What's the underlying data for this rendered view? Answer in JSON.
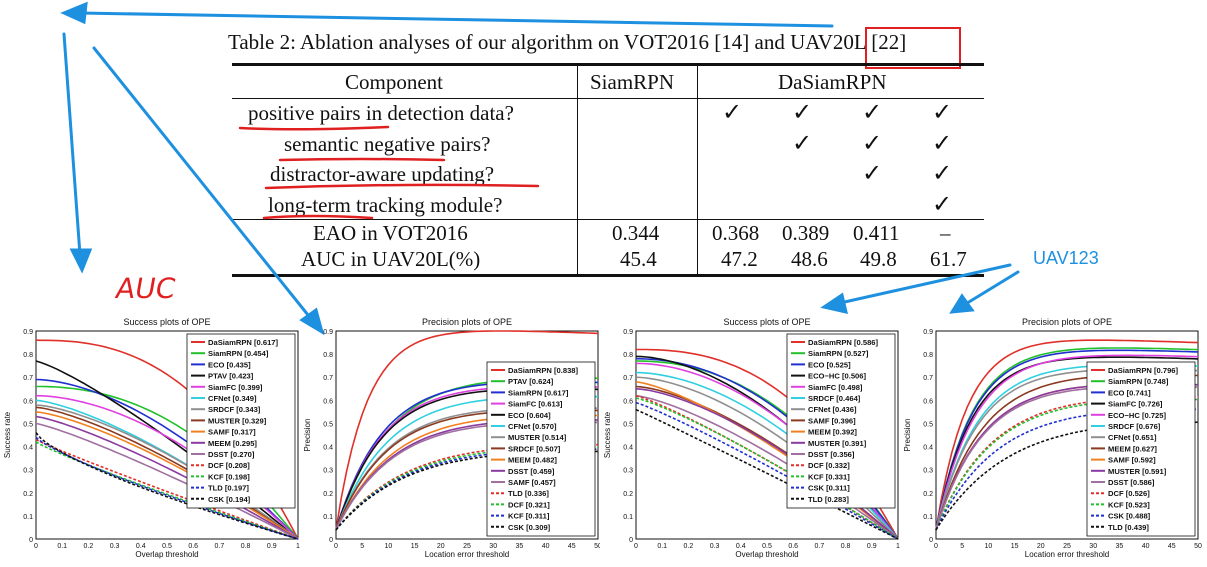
{
  "caption": {
    "prefix": "Table 2: Ablation analyses of our algorithm on VOT2016 [14] and ",
    "highlight": "UAV20L",
    "suffix": " [22]"
  },
  "table": {
    "headers": [
      "Component",
      "SiamRPN",
      "DaSiamRPN"
    ],
    "rows": [
      {
        "label": "positive pairs in detection data?",
        "checks": [
          true,
          true,
          true,
          true
        ]
      },
      {
        "label": "semantic negative pairs?",
        "checks": [
          false,
          true,
          true,
          true
        ]
      },
      {
        "label": "distractor-aware updating?",
        "checks": [
          false,
          false,
          true,
          true
        ]
      },
      {
        "label": "long-term tracking module?",
        "checks": [
          false,
          false,
          false,
          true
        ]
      }
    ],
    "metrics": [
      {
        "label": "EAO in VOT2016",
        "siamrpn": "0.344",
        "values": [
          "0.368",
          "0.389",
          "0.411",
          "–"
        ]
      },
      {
        "label": "AUC in UAV20L(%)",
        "siamrpn": "45.4",
        "values": [
          "47.2",
          "48.6",
          "49.8",
          "61.7"
        ]
      }
    ],
    "check_glyph": "✓"
  },
  "annotations": {
    "uav123": "UAV123",
    "auc": "AUC"
  },
  "colors": {
    "annotation_red": "#e02020",
    "annotation_blue": "#1e90e0"
  },
  "chart_data": [
    {
      "type": "line",
      "title": "Success plots of OPE",
      "xlabel": "Overlap threshold",
      "ylabel": "Success rate",
      "xlim": [
        0,
        1
      ],
      "ylim": [
        0,
        0.9
      ],
      "xticks": [
        "0",
        "0.1",
        "0.2",
        "0.3",
        "0.4",
        "0.5",
        "0.6",
        "0.7",
        "0.8",
        "0.9",
        "1"
      ],
      "yticks": [
        "0",
        "0.1",
        "0.2",
        "0.3",
        "0.4",
        "0.5",
        "0.6",
        "0.7",
        "0.8",
        "0.9"
      ],
      "legend_position": "top-right",
      "series": [
        {
          "name": "DaSiamRPN [0.617]",
          "color": "#e0302a",
          "dash": "solid",
          "start": 0.86,
          "shape": "success"
        },
        {
          "name": "SiamRPN [0.454]",
          "color": "#22c02a",
          "dash": "solid",
          "start": 0.66,
          "shape": "success"
        },
        {
          "name": "ECO [0.435]",
          "color": "#2030d0",
          "dash": "solid",
          "start": 0.69,
          "shape": "success"
        },
        {
          "name": "PTAV [0.423]",
          "color": "#111111",
          "dash": "solid",
          "start": 0.77,
          "shape": "success"
        },
        {
          "name": "SiamFC [0.399]",
          "color": "#e040e0",
          "dash": "solid",
          "start": 0.62,
          "shape": "success"
        },
        {
          "name": "CFNet [0.349]",
          "color": "#30d0e0",
          "dash": "solid",
          "start": 0.6,
          "shape": "success"
        },
        {
          "name": "SRDCF [0.343]",
          "color": "#909090",
          "dash": "solid",
          "start": 0.58,
          "shape": "success"
        },
        {
          "name": "MUSTER [0.329]",
          "color": "#8a3a20",
          "dash": "solid",
          "start": 0.57,
          "shape": "success"
        },
        {
          "name": "SAMF [0.317]",
          "color": "#f08020",
          "dash": "solid",
          "start": 0.55,
          "shape": "success"
        },
        {
          "name": "MEEM [0.295]",
          "color": "#8a3aa0",
          "dash": "solid",
          "start": 0.53,
          "shape": "success"
        },
        {
          "name": "DSST [0.270]",
          "color": "#a070a0",
          "dash": "solid",
          "start": 0.5,
          "shape": "success"
        },
        {
          "name": "DCF [0.208]",
          "color": "#e0302a",
          "dash": "dash",
          "start": 0.43,
          "shape": "success"
        },
        {
          "name": "KCF [0.198]",
          "color": "#22c02a",
          "dash": "dash",
          "start": 0.42,
          "shape": "success"
        },
        {
          "name": "TLD [0.197]",
          "color": "#2030d0",
          "dash": "dash",
          "start": 0.44,
          "shape": "success"
        },
        {
          "name": "CSK [0.194]",
          "color": "#111111",
          "dash": "dash",
          "start": 0.46,
          "shape": "success"
        }
      ]
    },
    {
      "type": "line",
      "title": "Precision plots of OPE",
      "xlabel": "Location error threshold",
      "ylabel": "Precision",
      "xlim": [
        0,
        50
      ],
      "ylim": [
        0,
        0.9
      ],
      "xticks": [
        "0",
        "5",
        "10",
        "15",
        "20",
        "25",
        "30",
        "35",
        "40",
        "45",
        "50"
      ],
      "yticks": [
        "0",
        "0.1",
        "0.2",
        "0.3",
        "0.4",
        "0.5",
        "0.6",
        "0.7",
        "0.8",
        "0.9"
      ],
      "legend_position": "bottom-right",
      "series": [
        {
          "name": "DaSiamRPN [0.838]",
          "color": "#e0302a",
          "dash": "solid",
          "end": 0.89,
          "k": 6
        },
        {
          "name": "PTAV [0.624]",
          "color": "#22c02a",
          "dash": "solid",
          "end": 0.7,
          "k": 10
        },
        {
          "name": "SiamRPN [0.617]",
          "color": "#2030d0",
          "dash": "solid",
          "end": 0.68,
          "k": 9
        },
        {
          "name": "SiamFC [0.613]",
          "color": "#e040e0",
          "dash": "solid",
          "end": 0.66,
          "k": 9
        },
        {
          "name": "ECO [0.604]",
          "color": "#111111",
          "dash": "solid",
          "end": 0.65,
          "k": 9
        },
        {
          "name": "CFNet [0.570]",
          "color": "#30d0e0",
          "dash": "solid",
          "end": 0.62,
          "k": 10
        },
        {
          "name": "MUSTER [0.514]",
          "color": "#909090",
          "dash": "solid",
          "end": 0.57,
          "k": 10
        },
        {
          "name": "SRDCF [0.507]",
          "color": "#8a3a20",
          "dash": "solid",
          "end": 0.56,
          "k": 10
        },
        {
          "name": "MEEM [0.482]",
          "color": "#f08020",
          "dash": "solid",
          "end": 0.54,
          "k": 11
        },
        {
          "name": "DSST [0.459]",
          "color": "#8a3aa0",
          "dash": "solid",
          "end": 0.52,
          "k": 11
        },
        {
          "name": "SAMF [0.457]",
          "color": "#a070a0",
          "dash": "solid",
          "end": 0.51,
          "k": 11
        },
        {
          "name": "TLD [0.336]",
          "color": "#e0302a",
          "dash": "dash",
          "end": 0.42,
          "k": 14
        },
        {
          "name": "DCF [0.321]",
          "color": "#22c02a",
          "dash": "dash",
          "end": 0.41,
          "k": 14
        },
        {
          "name": "KCF [0.311]",
          "color": "#2030d0",
          "dash": "dash",
          "end": 0.4,
          "k": 14
        },
        {
          "name": "CSK [0.309]",
          "color": "#111111",
          "dash": "dash",
          "end": 0.39,
          "k": 14
        }
      ]
    },
    {
      "type": "line",
      "title": "Success plots of OPE",
      "xlabel": "Overlap threshold",
      "ylabel": "Success rate",
      "xlim": [
        0,
        1
      ],
      "ylim": [
        0,
        0.9
      ],
      "xticks": [
        "0",
        "0.1",
        "0.2",
        "0.3",
        "0.4",
        "0.5",
        "0.6",
        "0.7",
        "0.8",
        "0.9",
        "1"
      ],
      "yticks": [
        "0",
        "0.1",
        "0.2",
        "0.3",
        "0.4",
        "0.5",
        "0.6",
        "0.7",
        "0.8",
        "0.9"
      ],
      "legend_position": "top-right",
      "series": [
        {
          "name": "DaSiamRPN [0.586]",
          "color": "#e0302a",
          "dash": "solid",
          "start": 0.82,
          "shape": "success"
        },
        {
          "name": "SiamRPN [0.527]",
          "color": "#22c02a",
          "dash": "solid",
          "start": 0.77,
          "shape": "success"
        },
        {
          "name": "ECO [0.525]",
          "color": "#2030d0",
          "dash": "solid",
          "start": 0.78,
          "shape": "success"
        },
        {
          "name": "ECO−HC [0.506]",
          "color": "#111111",
          "dash": "solid",
          "start": 0.79,
          "shape": "success"
        },
        {
          "name": "SiamFC [0.498]",
          "color": "#e040e0",
          "dash": "solid",
          "start": 0.76,
          "shape": "success"
        },
        {
          "name": "SRDCF [0.464]",
          "color": "#30d0e0",
          "dash": "solid",
          "start": 0.72,
          "shape": "success"
        },
        {
          "name": "CFNet [0.436]",
          "color": "#909090",
          "dash": "solid",
          "start": 0.7,
          "shape": "success"
        },
        {
          "name": "SAMF [0.396]",
          "color": "#8a3a20",
          "dash": "solid",
          "start": 0.66,
          "shape": "success"
        },
        {
          "name": "MEEM [0.392]",
          "color": "#f08020",
          "dash": "solid",
          "start": 0.68,
          "shape": "success"
        },
        {
          "name": "MUSTER [0.391]",
          "color": "#8a3aa0",
          "dash": "solid",
          "start": 0.65,
          "shape": "success"
        },
        {
          "name": "DSST [0.356]",
          "color": "#a070a0",
          "dash": "solid",
          "start": 0.62,
          "shape": "success"
        },
        {
          "name": "DCF [0.332]",
          "color": "#e0302a",
          "dash": "dash",
          "start": 0.62,
          "shape": "success"
        },
        {
          "name": "KCF [0.331]",
          "color": "#22c02a",
          "dash": "dash",
          "start": 0.61,
          "shape": "success"
        },
        {
          "name": "CSK [0.311]",
          "color": "#2030d0",
          "dash": "dash",
          "start": 0.59,
          "shape": "success"
        },
        {
          "name": "TLD [0.283]",
          "color": "#111111",
          "dash": "dash",
          "start": 0.56,
          "shape": "success"
        }
      ]
    },
    {
      "type": "line",
      "title": "Precision plots of OPE",
      "xlabel": "Location error threshold",
      "ylabel": "Precision",
      "xlim": [
        0,
        50
      ],
      "ylim": [
        0,
        0.9
      ],
      "xticks": [
        "0",
        "5",
        "10",
        "15",
        "20",
        "25",
        "30",
        "35",
        "40",
        "45",
        "50"
      ],
      "yticks": [
        "0",
        "0.1",
        "0.2",
        "0.3",
        "0.4",
        "0.5",
        "0.6",
        "0.7",
        "0.8",
        "0.9"
      ],
      "legend_position": "bottom-right",
      "series": [
        {
          "name": "DaSiamRPN [0.796]",
          "color": "#e0302a",
          "dash": "solid",
          "end": 0.85,
          "k": 6
        },
        {
          "name": "SiamRPN [0.748]",
          "color": "#22c02a",
          "dash": "solid",
          "end": 0.82,
          "k": 7
        },
        {
          "name": "ECO [0.741]",
          "color": "#2030d0",
          "dash": "solid",
          "end": 0.81,
          "k": 7
        },
        {
          "name": "SiamFC [0.726]",
          "color": "#111111",
          "dash": "solid",
          "end": 0.78,
          "k": 7
        },
        {
          "name": "ECO−HC [0.725]",
          "color": "#e040e0",
          "dash": "solid",
          "end": 0.79,
          "k": 7.5
        },
        {
          "name": "SRDCF [0.676]",
          "color": "#30d0e0",
          "dash": "solid",
          "end": 0.75,
          "k": 8
        },
        {
          "name": "CFNet [0.651]",
          "color": "#909090",
          "dash": "solid",
          "end": 0.73,
          "k": 8
        },
        {
          "name": "MEEM [0.627]",
          "color": "#8a3a20",
          "dash": "solid",
          "end": 0.71,
          "k": 9
        },
        {
          "name": "SAMF [0.592]",
          "color": "#f08020",
          "dash": "solid",
          "end": 0.67,
          "k": 9
        },
        {
          "name": "MUSTER [0.591]",
          "color": "#8a3aa0",
          "dash": "solid",
          "end": 0.67,
          "k": 9
        },
        {
          "name": "DSST [0.586]",
          "color": "#a070a0",
          "dash": "solid",
          "end": 0.66,
          "k": 9
        },
        {
          "name": "DCF [0.526]",
          "color": "#e0302a",
          "dash": "dash",
          "end": 0.62,
          "k": 11
        },
        {
          "name": "KCF [0.523]",
          "color": "#22c02a",
          "dash": "dash",
          "end": 0.61,
          "k": 11
        },
        {
          "name": "CSK [0.488]",
          "color": "#2030d0",
          "dash": "dash",
          "end": 0.57,
          "k": 12
        },
        {
          "name": "TLD [0.439]",
          "color": "#111111",
          "dash": "dash",
          "end": 0.52,
          "k": 14
        }
      ]
    }
  ]
}
